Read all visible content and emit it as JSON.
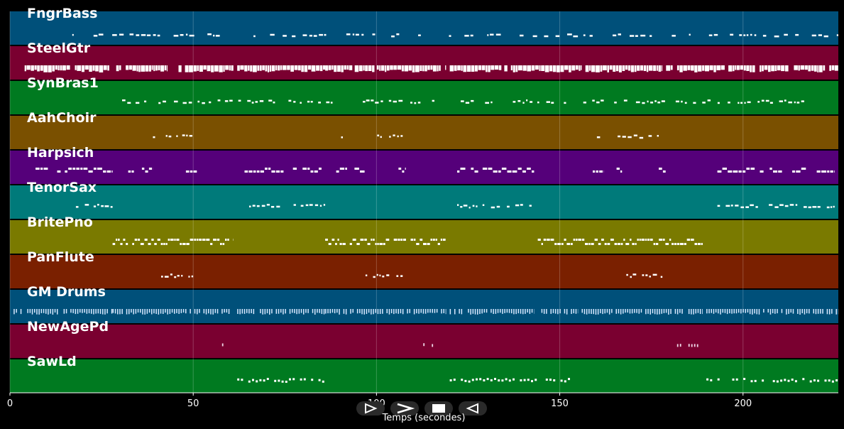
{
  "window": {
    "axis_title": "Temps (secondes)",
    "x_ticks": [
      0,
      50,
      100,
      150,
      200
    ],
    "x_range": [
      0,
      226
    ]
  },
  "controls": [
    {
      "name": "play-button",
      "icon": "play-icon"
    },
    {
      "name": "forward-button",
      "icon": "chevron-right-icon"
    },
    {
      "name": "stop-button",
      "icon": "stop-icon"
    },
    {
      "name": "rewind-button",
      "icon": "rewind-icon"
    }
  ],
  "tracks": [
    {
      "name": "FngrBass",
      "color": "#00507a",
      "segments": [
        [
          17,
          48
        ],
        [
          48,
          226
        ]
      ],
      "density": 0.55,
      "pattern": "bass"
    },
    {
      "name": "SteelGtr",
      "color": "#7a0030",
      "segments": [
        [
          4,
          28
        ],
        [
          29,
          43
        ],
        [
          46,
          61
        ],
        [
          62,
          86
        ],
        [
          86,
          119
        ],
        [
          120,
          156
        ],
        [
          157,
          178
        ],
        [
          179,
          195
        ],
        [
          196,
          226
        ]
      ],
      "density": 0.95,
      "pattern": "guitar"
    },
    {
      "name": "SynBras1",
      "color": "#007a20",
      "segments": [
        [
          28,
          221
        ]
      ],
      "density": 0.55,
      "pattern": "brass"
    },
    {
      "name": "AahChoir",
      "color": "#7a5000",
      "segments": [
        [
          39,
          50
        ],
        [
          89,
          91
        ],
        [
          97,
          108
        ],
        [
          159,
          161
        ],
        [
          164,
          177
        ]
      ],
      "density": 0.6,
      "pattern": "choir"
    },
    {
      "name": "Harpsich",
      "color": "#55007a",
      "segments": [
        [
          7,
          28
        ],
        [
          31,
          34
        ],
        [
          36,
          39
        ],
        [
          48,
          51
        ],
        [
          64,
          85
        ],
        [
          89,
          92
        ],
        [
          94,
          97
        ],
        [
          106,
          108
        ],
        [
          122,
          143
        ],
        [
          159,
          162
        ],
        [
          164,
          167
        ],
        [
          177,
          179
        ],
        [
          193,
          225
        ]
      ],
      "density": 0.85,
      "pattern": "harp"
    },
    {
      "name": "TenorSax",
      "color": "#007a7a",
      "segments": [
        [
          18,
          28
        ],
        [
          64,
          86
        ],
        [
          122,
          143
        ],
        [
          193,
          225
        ]
      ],
      "density": 0.6,
      "pattern": "sax"
    },
    {
      "name": "BritePno",
      "color": "#7a7a00",
      "segments": [
        [
          28,
          61
        ],
        [
          86,
          119
        ],
        [
          144,
          189
        ]
      ],
      "density": 0.95,
      "pattern": "piano"
    },
    {
      "name": "PanFlute",
      "color": "#7a2000",
      "segments": [
        [
          39,
          50
        ],
        [
          97,
          108
        ],
        [
          167,
          178
        ]
      ],
      "density": 0.7,
      "pattern": "flute"
    },
    {
      "name": "GM Drums",
      "color": "#00507a",
      "segments": [
        [
          1,
          28
        ],
        [
          28,
          60
        ],
        [
          62,
          86
        ],
        [
          86,
          119
        ],
        [
          120,
          143
        ],
        [
          145,
          155
        ],
        [
          156,
          189
        ],
        [
          190,
          226
        ]
      ],
      "density": 0.9,
      "pattern": "drums"
    },
    {
      "name": "NewAgePd",
      "color": "#7a0030",
      "segments": [
        [
          54,
          60
        ],
        [
          112,
          118
        ],
        [
          182,
          189
        ]
      ],
      "density": 0.5,
      "pattern": "pad"
    },
    {
      "name": "SawLd",
      "color": "#007a20",
      "segments": [
        [
          62,
          86
        ],
        [
          120,
          154
        ],
        [
          190,
          226
        ]
      ],
      "density": 0.75,
      "pattern": "lead"
    }
  ]
}
